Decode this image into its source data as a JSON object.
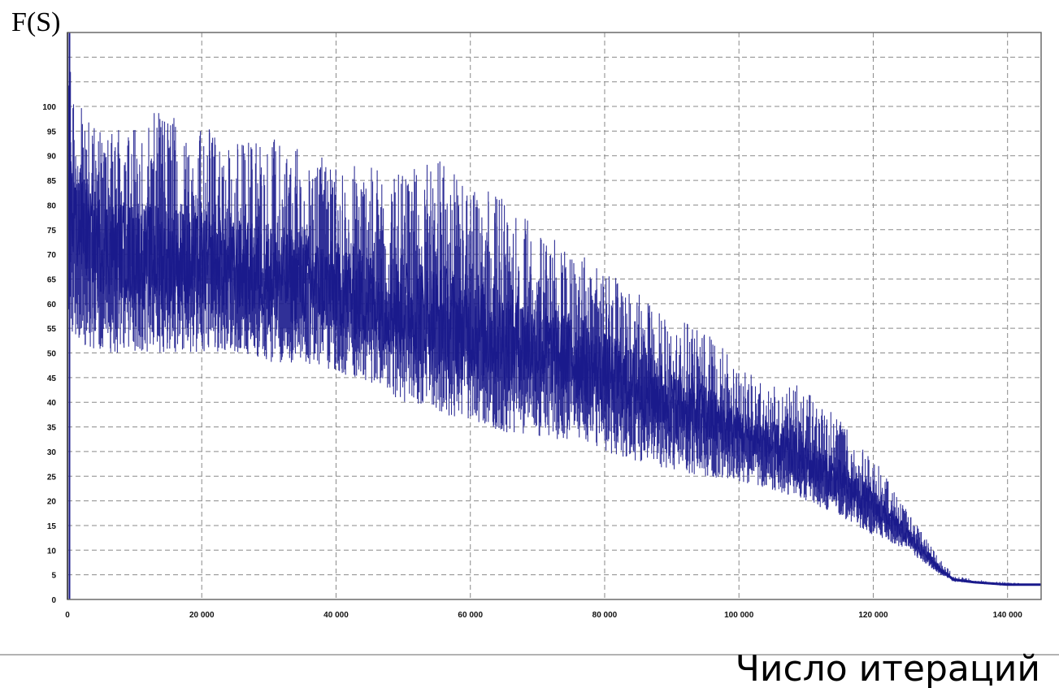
{
  "chart_data": {
    "type": "line",
    "title": "",
    "ylabel": "F(S)",
    "xlabel": "Число итераций",
    "xlim": [
      0,
      145000
    ],
    "ylim": [
      0,
      115
    ],
    "grid": true,
    "legend": "none",
    "x_ticks": [
      {
        "value": 0,
        "label": "0"
      },
      {
        "value": 20000,
        "label": "20 000"
      },
      {
        "value": 40000,
        "label": "40 000"
      },
      {
        "value": 60000,
        "label": "60 000"
      },
      {
        "value": 80000,
        "label": "80 000"
      },
      {
        "value": 100000,
        "label": "100 000"
      },
      {
        "value": 120000,
        "label": "120 000"
      },
      {
        "value": 140000,
        "label": "140 000"
      }
    ],
    "y_ticks": [
      {
        "value": 0,
        "label": "0"
      },
      {
        "value": 5,
        "label": "5"
      },
      {
        "value": 10,
        "label": "10"
      },
      {
        "value": 15,
        "label": "15"
      },
      {
        "value": 20,
        "label": "20"
      },
      {
        "value": 25,
        "label": "25"
      },
      {
        "value": 30,
        "label": "30"
      },
      {
        "value": 35,
        "label": "35"
      },
      {
        "value": 40,
        "label": "40"
      },
      {
        "value": 45,
        "label": "45"
      },
      {
        "value": 50,
        "label": "50"
      },
      {
        "value": 55,
        "label": "55"
      },
      {
        "value": 60,
        "label": "60"
      },
      {
        "value": 65,
        "label": "65"
      },
      {
        "value": 70,
        "label": "70"
      },
      {
        "value": 75,
        "label": "75"
      },
      {
        "value": 80,
        "label": "80"
      },
      {
        "value": 85,
        "label": "85"
      },
      {
        "value": 90,
        "label": "90"
      },
      {
        "value": 95,
        "label": "95"
      },
      {
        "value": 100,
        "label": "100"
      }
    ],
    "series": [
      {
        "color": "#1a1a8c",
        "x": [
          0,
          2000,
          5000,
          10000,
          15000,
          20000,
          25000,
          30000,
          35000,
          40000,
          45000,
          50000,
          55000,
          60000,
          65000,
          70000,
          75000,
          80000,
          85000,
          90000,
          95000,
          100000,
          105000,
          110000,
          115000,
          120000,
          125000,
          128000,
          130000,
          132000,
          135000,
          140000,
          145000
        ],
        "y_mean": [
          80,
          76,
          72,
          70,
          69,
          68,
          67,
          66,
          65,
          63,
          61,
          59,
          57,
          55,
          53,
          51,
          49,
          46,
          43,
          40,
          37,
          34,
          31,
          28,
          24,
          19,
          13,
          9,
          6,
          4,
          3.5,
          3,
          3
        ],
        "y_low": [
          55,
          52,
          50,
          50,
          50,
          50,
          50,
          48,
          48,
          46,
          44,
          40,
          38,
          36,
          34,
          33,
          32,
          30,
          28,
          26,
          25,
          24,
          22,
          20,
          17,
          13,
          10,
          7,
          5,
          4,
          3.5,
          3,
          3
        ],
        "y_high": [
          115,
          100,
          95,
          97,
          100,
          96,
          94,
          94,
          91,
          89,
          88,
          86,
          90,
          84,
          82,
          75,
          71,
          67,
          62,
          57,
          55,
          47,
          45,
          43,
          37,
          29,
          18,
          12,
          8,
          5,
          4,
          3.5,
          3
        ]
      }
    ]
  }
}
